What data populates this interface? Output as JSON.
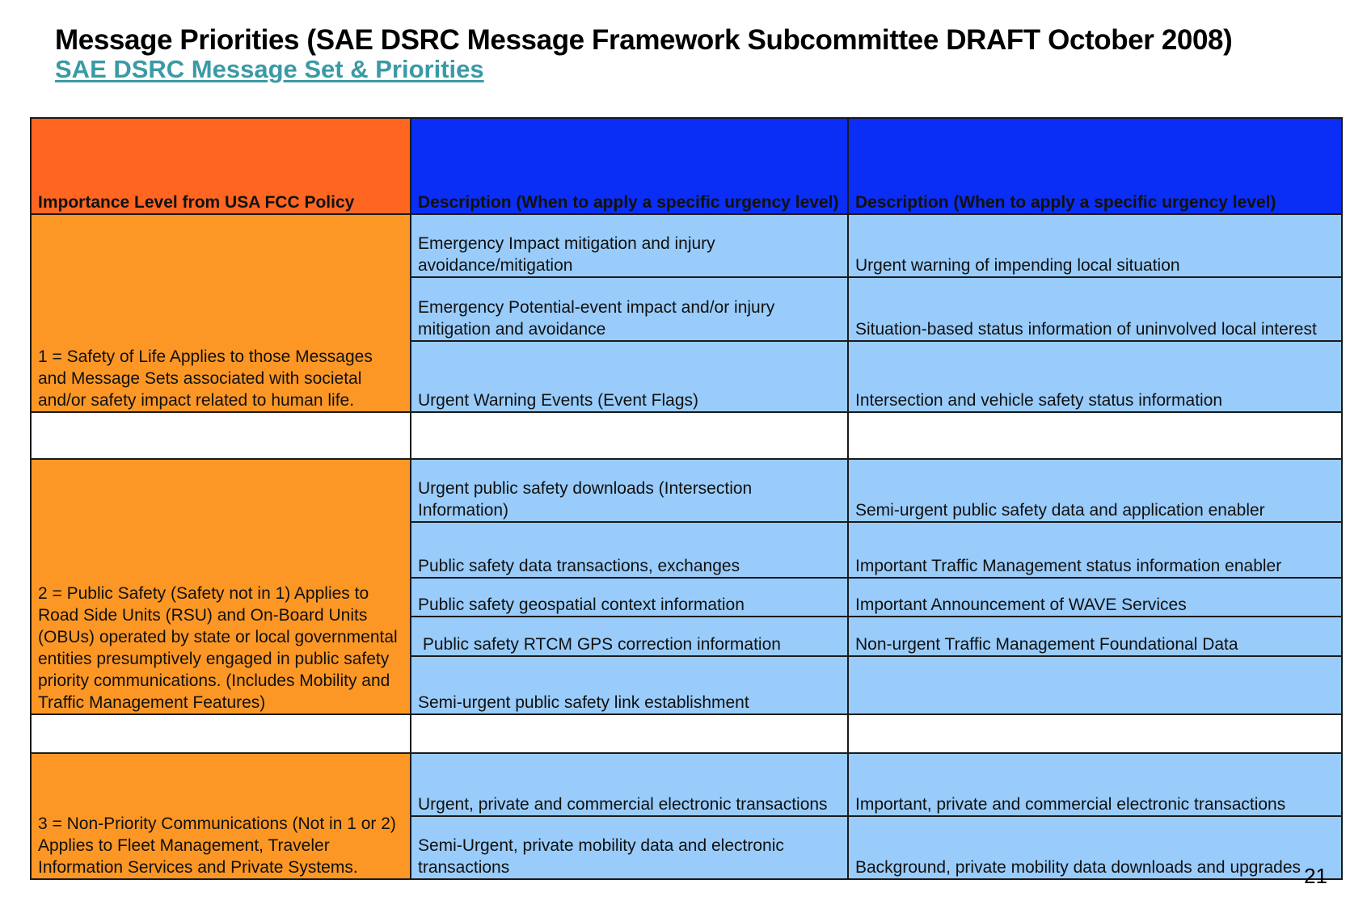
{
  "title": "Message Priorities (SAE DSRC Message Framework Subcommittee DRAFT October 2008)",
  "subtitle_link": "SAE DSRC Message Set & Priorities",
  "table": {
    "headers": {
      "col1": "Importance Level from USA FCC Policy",
      "col2": "Description (When to apply a specific urgency level)",
      "col3": "Description (When to apply a specific urgency level)"
    },
    "levels": [
      {
        "label": "1 = Safety of Life Applies to those Messages and Message Sets associated with societal and/or safety impact related to human life.",
        "rows": [
          {
            "desc": "Emergency Impact mitigation and injury avoidance/mitigation",
            "urgency": "Urgent warning of impending local situation"
          },
          {
            "desc": "Emergency Potential-event impact and/or injury mitigation and avoidance",
            "urgency": "Situation-based status information of uninvolved local interest"
          },
          {
            "desc": "Urgent Warning Events (Event Flags)",
            "urgency": "Intersection and vehicle safety status information"
          }
        ]
      },
      {
        "label": "2 = Public Safety (Safety not in 1) Applies to Road Side Units (RSU) and On-Board Units (OBUs) operated by state or local governmental entities presumptively engaged in public safety priority communications.  (Includes Mobility and Traffic Management Features)",
        "rows": [
          {
            "desc": "Urgent public safety downloads (Intersection Information)",
            "urgency": "Semi-urgent public safety data and application enabler"
          },
          {
            "desc": "Public safety data transactions, exchanges",
            "urgency": "Important Traffic Management status information enabler"
          },
          {
            "desc": "Public safety geospatial context information",
            "urgency": "Important Announcement of WAVE Services"
          },
          {
            "desc": " Public safety RTCM GPS correction information",
            "urgency": "Non-urgent Traffic Management Foundational Data"
          },
          {
            "desc": "Semi-urgent public safety link establishment",
            "urgency": ""
          }
        ]
      },
      {
        "label": "3 = Non-Priority Communications (Not in 1 or 2) Applies to Fleet Management, Traveler Information Services and Private Systems.",
        "rows": [
          {
            "desc": "Urgent, private and commercial electronic transactions",
            "urgency": "Important, private and commercial electronic transactions"
          },
          {
            "desc": "Semi-Urgent, private mobility data and electronic transactions",
            "urgency": "Background, private mobility data downloads and upgrades"
          }
        ]
      }
    ]
  },
  "page_number": "21",
  "colors": {
    "header_orange": "#ff6622",
    "header_blue": "#0a2ef5",
    "level_orange": "#fc9726",
    "cell_light_blue": "#99ccfa",
    "link_teal": "#3a9aa6"
  }
}
